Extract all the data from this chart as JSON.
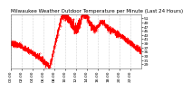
{
  "title": "Milwaukee Weather Outdoor Temperature per Minute (Last 24 Hours)",
  "line_color": "#ff0000",
  "background_color": "#ffffff",
  "plot_bg_color": "#ffffff",
  "grid_color": "#999999",
  "ylim": [
    27,
    53
  ],
  "ytick_values": [
    29,
    31,
    33,
    35,
    37,
    39,
    41,
    43,
    45,
    47,
    49,
    51
  ],
  "num_points": 1440,
  "title_fontsize": 4.0,
  "tick_fontsize": 3.2,
  "linewidth": 0.55,
  "marker_size": 0.5
}
